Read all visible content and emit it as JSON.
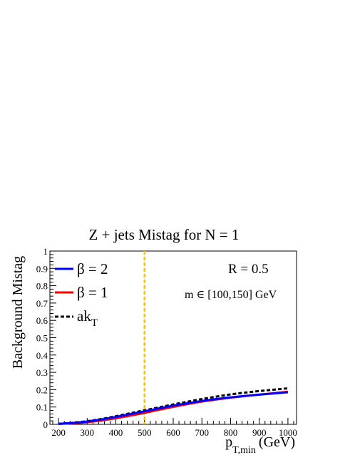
{
  "chart_data": {
    "type": "line",
    "title": "Z + jets Mistag for N = 1",
    "ylabel": "Background Mistag",
    "xlabel": {
      "main": "p",
      "sub": "T,min",
      "unit": "(GeV)"
    },
    "xlim": [
      170,
      1030
    ],
    "ylim": [
      0,
      1
    ],
    "xticks": [
      200,
      300,
      400,
      500,
      600,
      700,
      800,
      900,
      1000
    ],
    "yticks": [
      0,
      0.1,
      0.2,
      0.3,
      0.4,
      0.5,
      0.6,
      0.7,
      0.8,
      0.9,
      1
    ],
    "legend_position": "top-left",
    "series": [
      {
        "name": "β = 2",
        "color": "#0000ff",
        "style": "solid",
        "x": [
          200,
          250,
          300,
          350,
          400,
          450,
          500,
          550,
          600,
          650,
          700,
          750,
          800,
          850,
          900,
          950,
          1000
        ],
        "y": [
          0.003,
          0.008,
          0.016,
          0.028,
          0.043,
          0.059,
          0.075,
          0.092,
          0.108,
          0.122,
          0.135,
          0.146,
          0.156,
          0.164,
          0.171,
          0.178,
          0.185
        ]
      },
      {
        "name": "β = 1",
        "color": "#ff0000",
        "style": "solid",
        "x": [
          200,
          250,
          300,
          350,
          400,
          450,
          500,
          550,
          600,
          650,
          700,
          750,
          800,
          850,
          900,
          950,
          1000
        ],
        "y": [
          0.002,
          0.006,
          0.012,
          0.022,
          0.035,
          0.05,
          0.066,
          0.084,
          0.101,
          0.117,
          0.131,
          0.143,
          0.154,
          0.163,
          0.172,
          0.18,
          0.188
        ]
      },
      {
        "name": "ak",
        "name_sub": "T",
        "color": "#000000",
        "style": "dashed",
        "x": [
          200,
          250,
          300,
          350,
          400,
          450,
          500,
          550,
          600,
          650,
          700,
          750,
          800,
          850,
          900,
          950,
          1000
        ],
        "y": [
          0.003,
          0.009,
          0.018,
          0.031,
          0.047,
          0.064,
          0.081,
          0.098,
          0.115,
          0.131,
          0.146,
          0.16,
          0.173,
          0.183,
          0.192,
          0.2,
          0.208
        ]
      }
    ],
    "vline": {
      "x": 500,
      "color": "#ffc000"
    },
    "annotations": [
      "R = 0.5",
      "m ∈ [100,150] GeV"
    ]
  }
}
